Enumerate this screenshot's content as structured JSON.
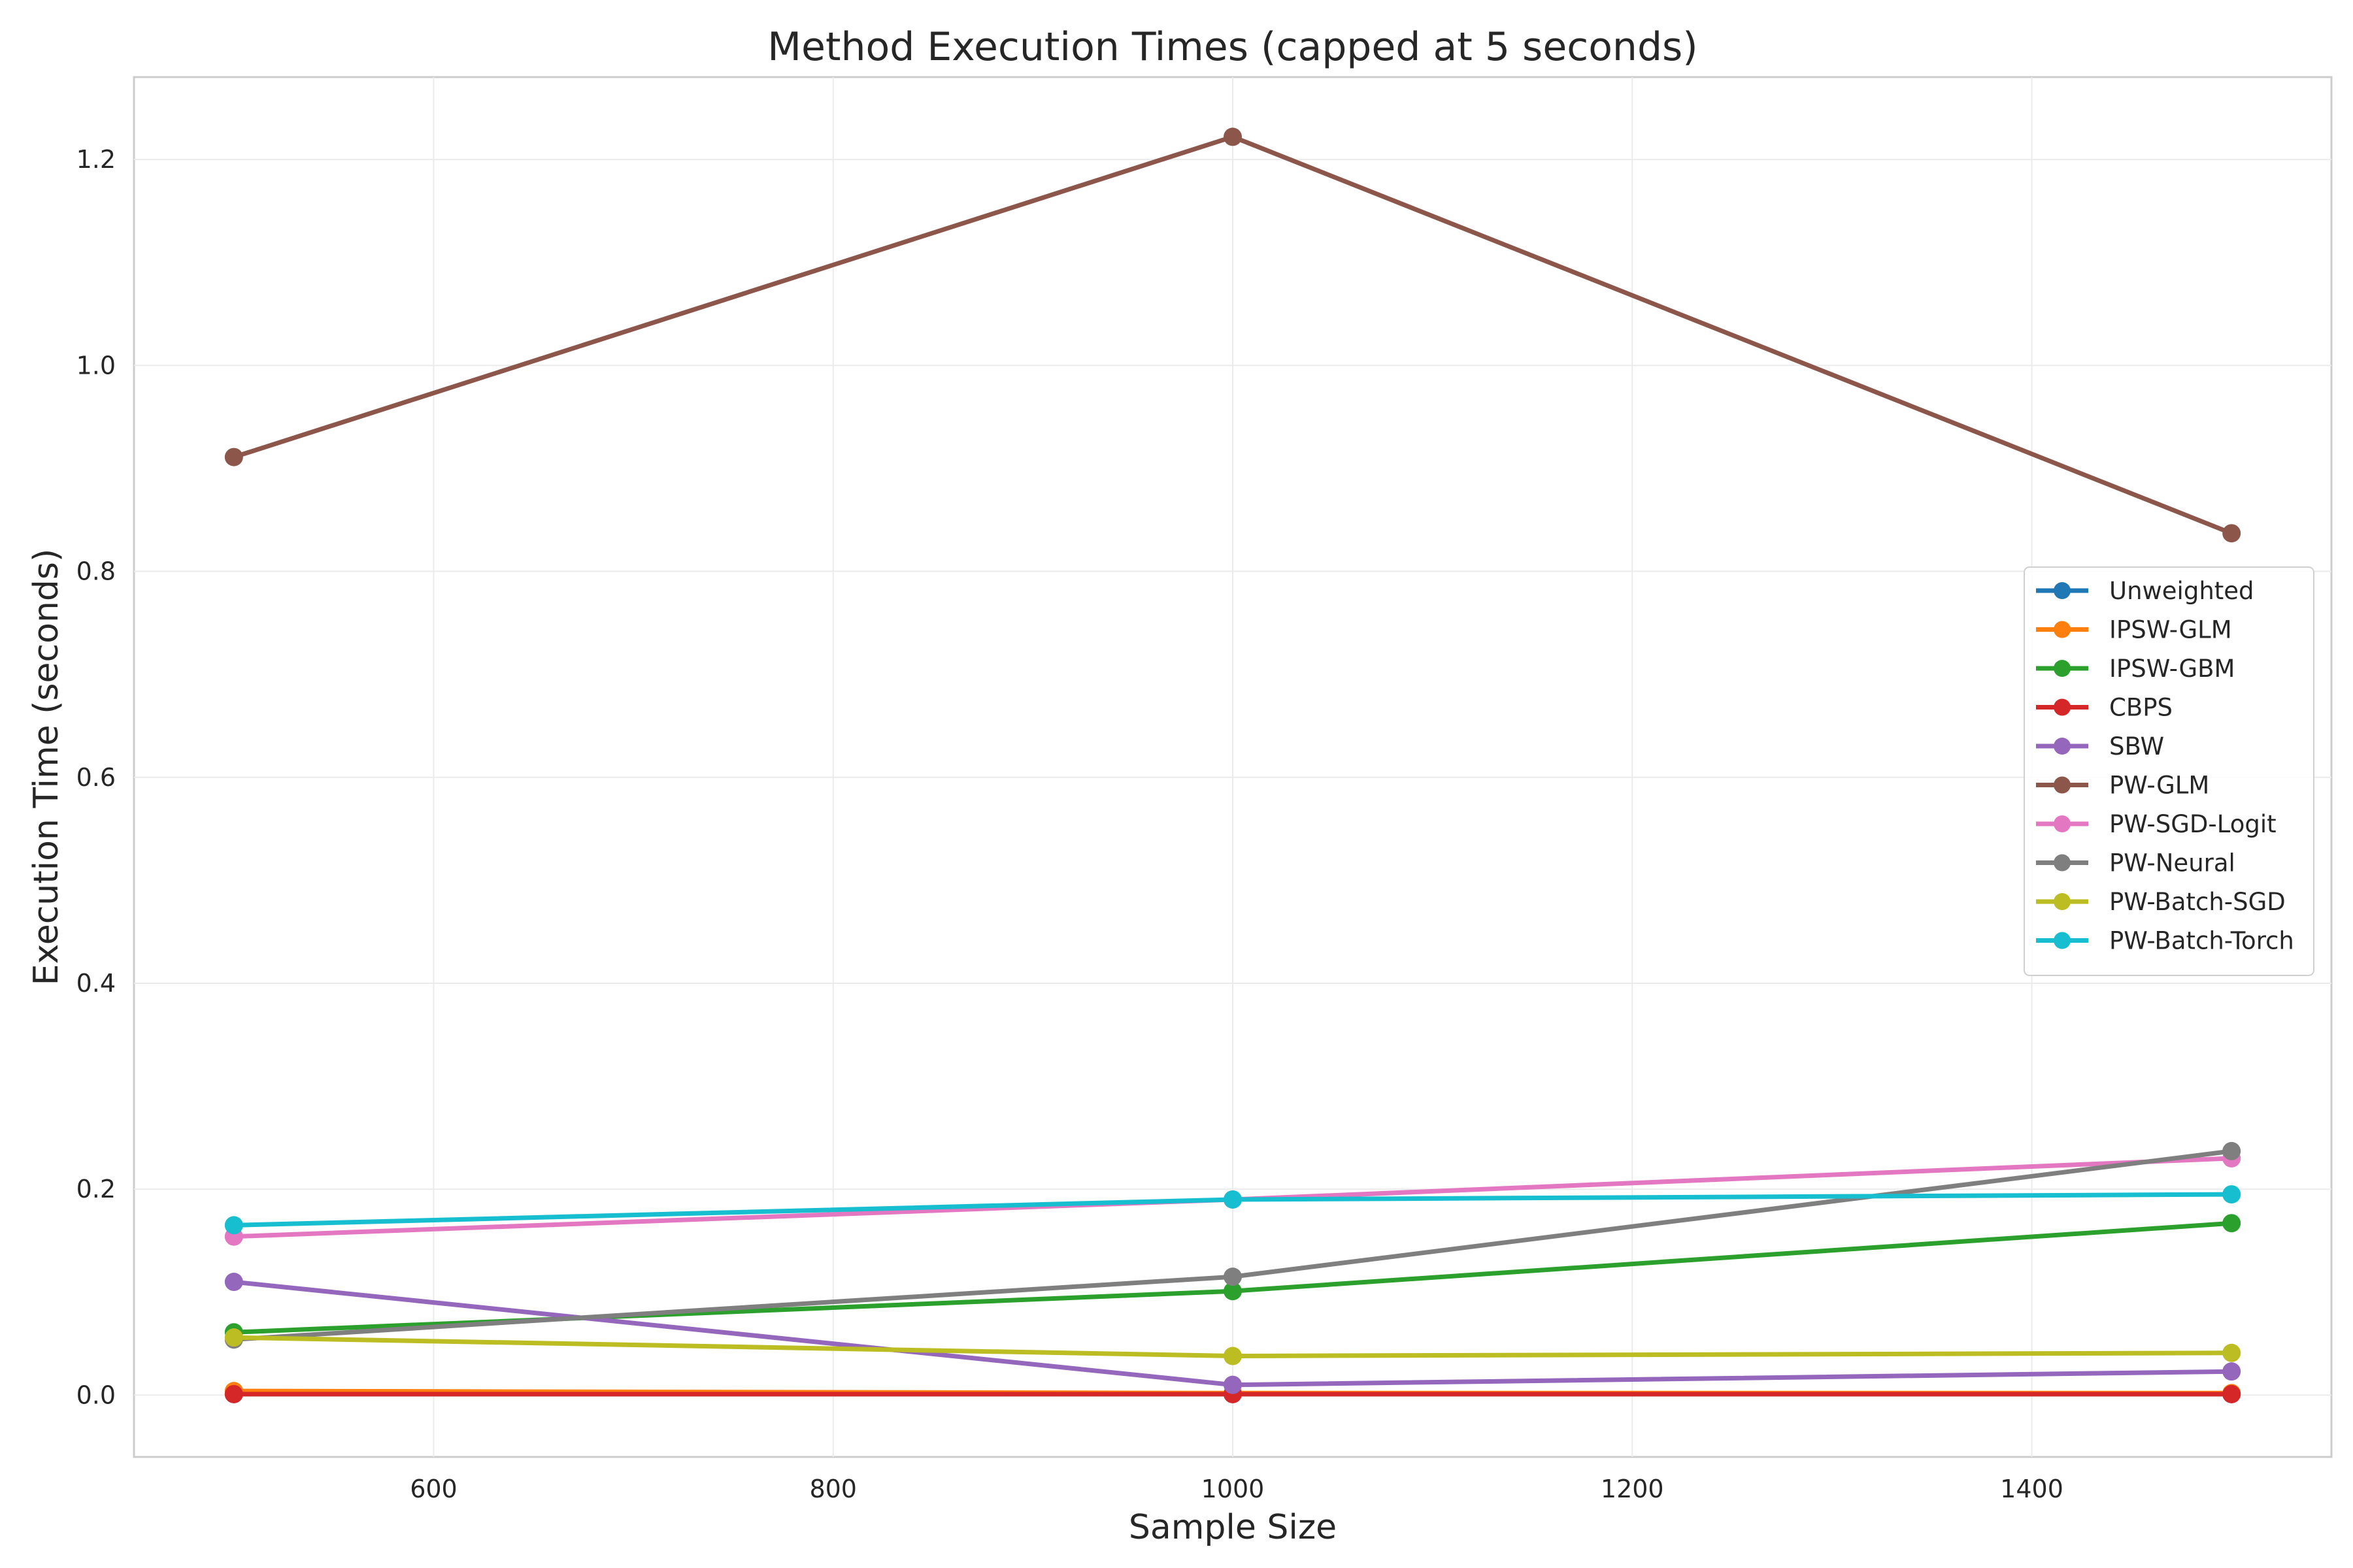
{
  "chart_data": {
    "type": "line",
    "title": "Method Execution Times (capped at 5 seconds)",
    "xlabel": "Sample Size",
    "ylabel": "Execution Time (seconds)",
    "x": [
      500,
      1000,
      1500
    ],
    "xlim": [
      450,
      1550
    ],
    "ylim": [
      -0.06,
      1.28
    ],
    "xticks": [
      600,
      800,
      1000,
      1200,
      1400
    ],
    "xtick_labels": [
      "600",
      "800",
      "1000",
      "1200",
      "1400"
    ],
    "yticks": [
      0.0,
      0.2,
      0.4,
      0.6,
      0.8,
      1.0,
      1.2
    ],
    "ytick_labels": [
      "0.0",
      "0.2",
      "0.4",
      "0.6",
      "0.8",
      "1.0",
      "1.2"
    ],
    "grid": true,
    "legend_position": "center-right",
    "series": [
      {
        "name": "Unweighted",
        "color": "#1f77b4",
        "values": [
          0.001,
          0.001,
          0.001
        ]
      },
      {
        "name": "IPSW-GLM",
        "color": "#ff7f0e",
        "values": [
          0.004,
          0.002,
          0.002
        ]
      },
      {
        "name": "IPSW-GBM",
        "color": "#2ca02c",
        "values": [
          0.061,
          0.101,
          0.167
        ]
      },
      {
        "name": "CBPS",
        "color": "#d62728",
        "values": [
          0.001,
          0.001,
          0.001
        ]
      },
      {
        "name": "SBW",
        "color": "#9467bd",
        "values": [
          0.11,
          0.01,
          0.023
        ]
      },
      {
        "name": "PW-GLM",
        "color": "#8c564b",
        "values": [
          0.911,
          1.222,
          0.837
        ]
      },
      {
        "name": "PW-SGD-Logit",
        "color": "#e377c2",
        "values": [
          0.154,
          0.19,
          0.23
        ]
      },
      {
        "name": "PW-Neural",
        "color": "#7f7f7f",
        "values": [
          0.054,
          0.115,
          0.237
        ]
      },
      {
        "name": "PW-Batch-SGD",
        "color": "#bcbd22",
        "values": [
          0.056,
          0.038,
          0.041
        ]
      },
      {
        "name": "PW-Batch-Torch",
        "color": "#17becf",
        "values": [
          0.165,
          0.19,
          0.195
        ]
      }
    ]
  }
}
